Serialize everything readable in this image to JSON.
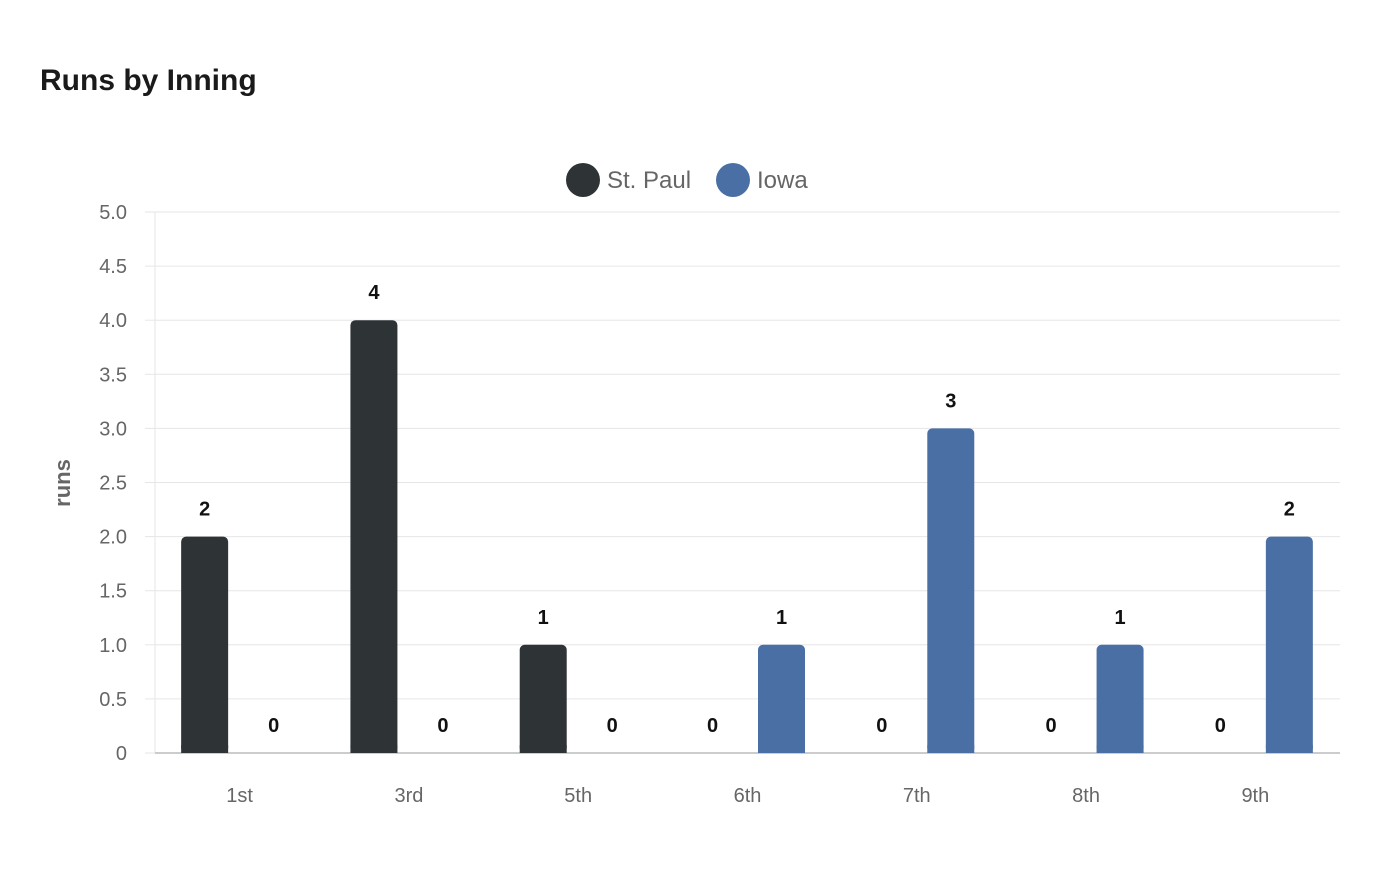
{
  "chart_data": {
    "type": "bar",
    "title": "Runs by Inning",
    "ylabel": "runs",
    "xlabel": "",
    "ylim": [
      0,
      5
    ],
    "yticks": [
      "0",
      "0.5",
      "1.0",
      "1.5",
      "2.0",
      "2.5",
      "3.0",
      "3.5",
      "4.0",
      "4.5",
      "5.0"
    ],
    "categories": [
      "1st",
      "3rd",
      "5th",
      "6th",
      "7th",
      "8th",
      "9th"
    ],
    "grid": true,
    "legend_position": "top-center",
    "series": [
      {
        "name": "St. Paul",
        "color": "#2e3436",
        "values": [
          2,
          4,
          1,
          0,
          0,
          0,
          0
        ]
      },
      {
        "name": "Iowa",
        "color": "#4a6fa5",
        "values": [
          0,
          0,
          0,
          1,
          3,
          1,
          2
        ]
      }
    ]
  }
}
